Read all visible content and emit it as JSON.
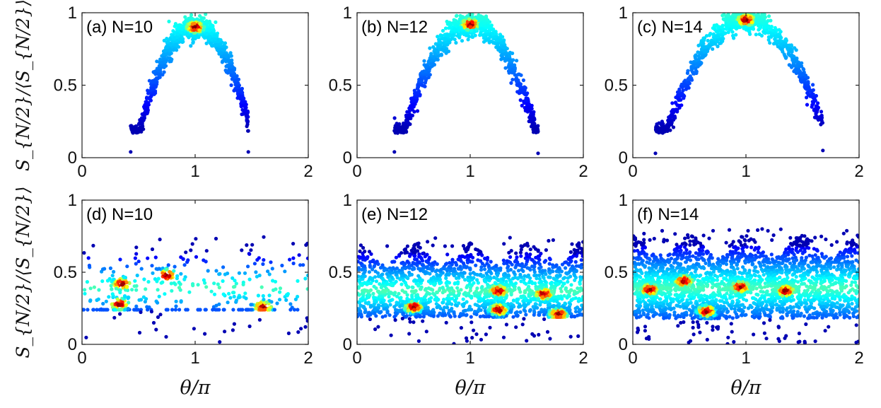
{
  "figure": {
    "ylabel": "S_{N/2}/⟨S_{N/2}⟩",
    "xlabel": "θ/π"
  },
  "colormap": {
    "name": "jet",
    "stops": [
      "#00008f",
      "#0000ff",
      "#00ffff",
      "#ffff00",
      "#ff0000",
      "#800000"
    ]
  },
  "chart_data": [
    {
      "type": "scatter",
      "panel": "a",
      "label": "(a) N=10",
      "N": 10,
      "xlim": [
        0,
        2
      ],
      "ylim": [
        0,
        1
      ],
      "xticks": [
        "0",
        "1",
        "2"
      ],
      "yticks": [
        "0",
        "0.5",
        "1"
      ],
      "xlabel": "",
      "ylabel": "S_{N/2}/⟨S_{N/2}⟩",
      "shape": "arch",
      "x_range": [
        0.43,
        1.47
      ],
      "y_peak": 0.9,
      "edge_points": [
        [
          0.43,
          0.04
        ],
        [
          1.47,
          0.04
        ]
      ],
      "density_peaks": [
        {
          "x": 1.0,
          "y": 0.9
        }
      ]
    },
    {
      "type": "scatter",
      "panel": "b",
      "label": "(b) N=12",
      "N": 12,
      "xlim": [
        0,
        2
      ],
      "ylim": [
        0,
        1
      ],
      "xticks": [
        "0",
        "1",
        "2"
      ],
      "yticks": [
        "0",
        "0.5",
        "1"
      ],
      "xlabel": "",
      "ylabel": "",
      "shape": "arch",
      "x_range": [
        0.33,
        1.6
      ],
      "y_peak": 0.92,
      "edge_points": [
        [
          0.33,
          0.04
        ],
        [
          1.6,
          0.03
        ]
      ],
      "density_peaks": [
        {
          "x": 1.0,
          "y": 0.92
        }
      ]
    },
    {
      "type": "scatter",
      "panel": "c",
      "label": "(c) N=14",
      "N": 14,
      "xlim": [
        0,
        2
      ],
      "ylim": [
        0,
        1
      ],
      "xticks": [
        "0",
        "1",
        "2"
      ],
      "yticks": [
        "0",
        "0.5",
        "1"
      ],
      "xlabel": "",
      "ylabel": "",
      "shape": "arch",
      "x_range": [
        0.2,
        1.68
      ],
      "y_peak": 0.95,
      "edge_points": [
        [
          0.2,
          0.03
        ],
        [
          1.68,
          0.05
        ]
      ],
      "density_peaks": [
        {
          "x": 1.0,
          "y": 0.95
        }
      ]
    },
    {
      "type": "scatter",
      "panel": "d",
      "label": "(d) N=10",
      "N": 10,
      "xlim": [
        0,
        2
      ],
      "ylim": [
        0,
        1
      ],
      "xticks": [
        "0",
        "1",
        "2"
      ],
      "yticks": [
        "0",
        "0.5",
        "1"
      ],
      "xlabel": "θ/π",
      "ylabel": "S_{N/2}/⟨S_{N/2}⟩",
      "shape": "band",
      "baseline": 0.24,
      "band_top": 0.55,
      "density_peaks": [
        {
          "x": 0.33,
          "y": 0.28
        },
        {
          "x": 1.6,
          "y": 0.26
        },
        {
          "x": 0.35,
          "y": 0.42
        },
        {
          "x": 0.75,
          "y": 0.48
        }
      ]
    },
    {
      "type": "scatter",
      "panel": "e",
      "label": "(e) N=12",
      "N": 12,
      "xlim": [
        0,
        2
      ],
      "ylim": [
        0,
        1
      ],
      "xticks": [
        "0",
        "1",
        "2"
      ],
      "yticks": [
        "0",
        "0.5",
        "1"
      ],
      "xlabel": "θ/π",
      "ylabel": "",
      "shape": "band",
      "baseline": 0.19,
      "band_top": 0.55,
      "density_peaks": [
        {
          "x": 0.5,
          "y": 0.26
        },
        {
          "x": 1.25,
          "y": 0.37
        },
        {
          "x": 1.25,
          "y": 0.24
        },
        {
          "x": 1.65,
          "y": 0.35
        },
        {
          "x": 1.78,
          "y": 0.21
        }
      ]
    },
    {
      "type": "scatter",
      "panel": "f",
      "label": "(f) N=14",
      "N": 14,
      "xlim": [
        0,
        2
      ],
      "ylim": [
        0,
        1
      ],
      "xticks": [
        "0",
        "1",
        "2"
      ],
      "yticks": [
        "0",
        "0.5",
        "1"
      ],
      "xlabel": "θ/π",
      "ylabel": "",
      "shape": "band",
      "baseline": 0.18,
      "band_top": 0.6,
      "density_peaks": [
        {
          "x": 0.15,
          "y": 0.38
        },
        {
          "x": 1.35,
          "y": 0.37
        },
        {
          "x": 0.45,
          "y": 0.44
        },
        {
          "x": 0.95,
          "y": 0.4
        },
        {
          "x": 0.65,
          "y": 0.23
        }
      ]
    }
  ]
}
